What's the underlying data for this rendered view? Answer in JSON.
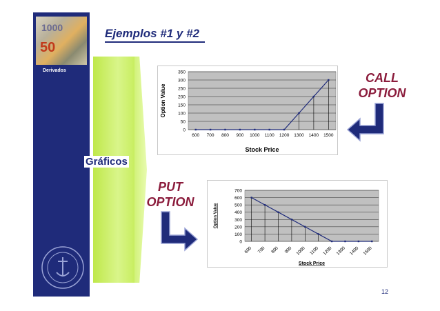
{
  "slide": {
    "title": "Ejemplos #1 y #2",
    "sidebar_label": "Derivados",
    "photo_text_1": "1000",
    "photo_text_2": "50",
    "section_label": "Gráficos",
    "call_label_line1": "CALL",
    "call_label_line2": "OPTION",
    "put_label_line1": "PUT",
    "put_label_line2": "OPTION",
    "page_number": "12",
    "colors": {
      "navy": "#1f2b7a",
      "label_red": "#8b1c3c",
      "green": "#c8ee60",
      "plot_gray": "#c0c0c0"
    }
  },
  "chart_data": [
    {
      "type": "line",
      "name": "call-option-chart",
      "xlabel": "Stock Price",
      "ylabel": "Option Value",
      "x": [
        600,
        700,
        800,
        900,
        1000,
        1100,
        1200,
        1300,
        1400,
        1500
      ],
      "values": [
        0,
        0,
        0,
        0,
        0,
        0,
        0,
        100,
        200,
        300
      ],
      "ylim": [
        0,
        350
      ],
      "yticks": [
        0,
        50,
        100,
        150,
        200,
        250,
        300,
        350
      ],
      "grid": true,
      "drop_lines": true,
      "tick_rotation": 0
    },
    {
      "type": "line",
      "name": "put-option-chart",
      "xlabel": "Stock Price",
      "ylabel": "Option Value",
      "x": [
        600,
        700,
        800,
        900,
        1000,
        1100,
        1200,
        1300,
        1400,
        1500
      ],
      "values": [
        600,
        500,
        400,
        300,
        200,
        100,
        0,
        0,
        0,
        0
      ],
      "ylim": [
        0,
        700
      ],
      "yticks": [
        0,
        100,
        200,
        300,
        400,
        500,
        600,
        700
      ],
      "grid": true,
      "drop_lines": true,
      "tick_rotation": -45
    }
  ]
}
